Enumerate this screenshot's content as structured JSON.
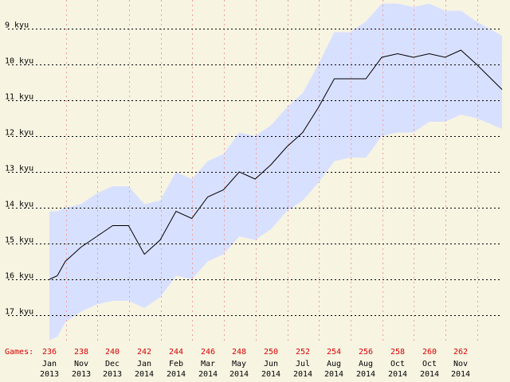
{
  "chart_data": {
    "type": "line",
    "title": "",
    "xlabel": "",
    "ylabel": "",
    "y_axis": {
      "labels": [
        "9 kyu",
        "10 kyu",
        "11 kyu",
        "12 kyu",
        "13 kyu",
        "14 kyu",
        "15 kyu",
        "16 kyu",
        "17 kyu"
      ],
      "values": [
        9,
        10,
        11,
        12,
        13,
        14,
        15,
        16,
        17
      ],
      "direction": "inverted (stronger rank at top)",
      "ylim": [
        8.2,
        17.8
      ]
    },
    "games_label": "Games:",
    "games_ticks": [
      236,
      238,
      240,
      242,
      244,
      246,
      248,
      250,
      252,
      254,
      256,
      258,
      260,
      262
    ],
    "date_labels": [
      {
        "month": "Jan",
        "year": "2013"
      },
      {
        "month": "Nov",
        "year": "2013"
      },
      {
        "month": "Dec",
        "year": "2013"
      },
      {
        "month": "Jan",
        "year": "2014"
      },
      {
        "month": "Feb",
        "year": "2014"
      },
      {
        "month": "Mar",
        "year": "2014"
      },
      {
        "month": "May",
        "year": "2014"
      },
      {
        "month": "Jun",
        "year": "2014"
      },
      {
        "month": "Jul",
        "year": "2014"
      },
      {
        "month": "Aug",
        "year": "2014"
      },
      {
        "month": "Aug",
        "year": "2014"
      },
      {
        "month": "Oct",
        "year": "2014"
      },
      {
        "month": "Oct",
        "year": "2014"
      },
      {
        "month": "Nov",
        "year": "2014"
      }
    ],
    "xlim": [
      236,
      264.6
    ],
    "grid": true,
    "series": [
      {
        "x": [
          236,
          236.5,
          237,
          238,
          239,
          240,
          241,
          242,
          243,
          244,
          245,
          246,
          247,
          248,
          249,
          250,
          251,
          252,
          253,
          254,
          255,
          256,
          257,
          258,
          259,
          260,
          261,
          262,
          263,
          264.6
        ],
        "rank": [
          16.0,
          15.9,
          15.5,
          15.1,
          14.8,
          14.5,
          14.5,
          15.3,
          14.9,
          14.1,
          14.3,
          13.7,
          13.5,
          13.0,
          13.2,
          12.8,
          12.3,
          11.9,
          11.2,
          10.4,
          10.4,
          10.4,
          9.8,
          9.7,
          9.8,
          9.7,
          9.8,
          9.6,
          10.0,
          10.7
        ],
        "band_upper": [
          14.1,
          14.1,
          14.0,
          13.9,
          13.6,
          13.4,
          13.4,
          13.9,
          13.8,
          13.0,
          13.2,
          12.7,
          12.5,
          11.9,
          12.0,
          11.7,
          11.2,
          10.8,
          10.0,
          9.1,
          9.1,
          8.8,
          8.3,
          8.3,
          8.4,
          8.3,
          8.5,
          8.5,
          8.8,
          9.2
        ],
        "band_lower": [
          17.7,
          17.6,
          17.2,
          16.9,
          16.7,
          16.6,
          16.6,
          16.8,
          16.5,
          15.9,
          16.0,
          15.5,
          15.3,
          14.8,
          14.9,
          14.6,
          14.1,
          13.8,
          13.3,
          12.7,
          12.6,
          12.6,
          12.0,
          11.9,
          11.9,
          11.6,
          11.6,
          11.4,
          11.5,
          11.8
        ]
      }
    ],
    "colors": {
      "background": "#f7f4e2",
      "band": "#d8e0ff",
      "line": "#000000",
      "y_grid": "#000000",
      "x_grid": "#e9a29a",
      "games_text": "#d80000",
      "axis_text": "#000000"
    }
  }
}
